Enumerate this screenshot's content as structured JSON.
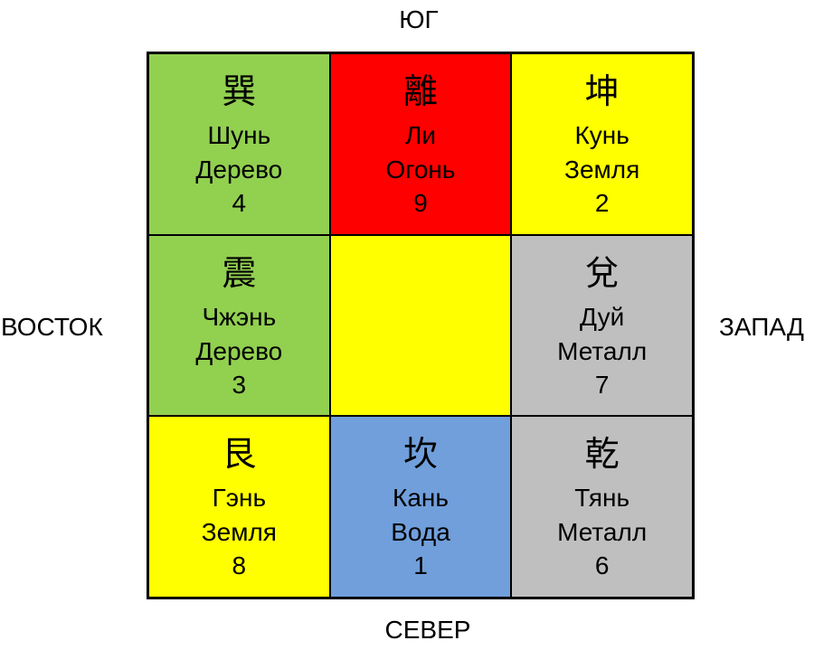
{
  "directions": {
    "south": "ЮГ",
    "north": "СЕВЕР",
    "east": "ВОСТОК",
    "west": "ЗАПАД"
  },
  "cells": [
    {
      "char": "巽",
      "name": "Шунь",
      "element": "Дерево",
      "number": "4",
      "color": "#92d050"
    },
    {
      "char": "離",
      "name": "Ли",
      "element": "Огонь",
      "number": "9",
      "color": "#ff0000"
    },
    {
      "char": "坤",
      "name": "Кунь",
      "element": "Земля",
      "number": "2",
      "color": "#ffff00"
    },
    {
      "char": "震",
      "name": "Чжэнь",
      "element": "Дерево",
      "number": "3",
      "color": "#92d050"
    },
    {
      "color": "#ffff00"
    },
    {
      "char": "兌",
      "name": "Дуй",
      "element": "Металл",
      "number": "7",
      "color": "#bfbfbf"
    },
    {
      "char": "艮",
      "name": "Гэнь",
      "element": "Земля",
      "number": "8",
      "color": "#ffff00"
    },
    {
      "char": "坎",
      "name": "Кань",
      "element": "Вода",
      "number": "1",
      "color": "#719fdb"
    },
    {
      "char": "乾",
      "name": "Тянь",
      "element": "Металл",
      "number": "6",
      "color": "#bfbfbf"
    }
  ]
}
